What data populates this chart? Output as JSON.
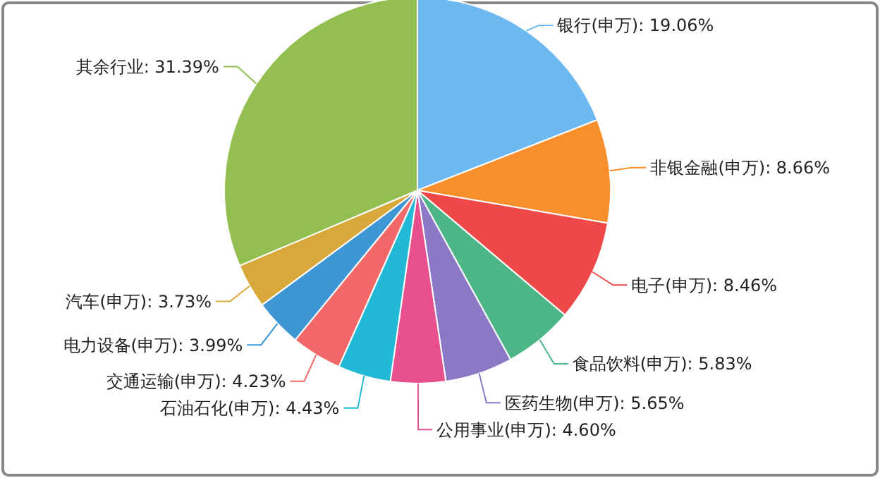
{
  "chart_data": {
    "type": "pie",
    "categories": [
      "银行(申万)",
      "非银金融(申万)",
      "电子(申万)",
      "食品饮料(申万)",
      "医药生物(申万)",
      "公用事业(申万)",
      "石油石化(申万)",
      "交通运输(申万)",
      "电力设备(申万)",
      "汽车(申万)",
      "其余行业"
    ],
    "values": [
      19.06,
      8.66,
      8.46,
      5.83,
      5.65,
      4.6,
      4.43,
      4.23,
      3.99,
      3.73,
      31.39
    ],
    "value_labels": [
      "19.06%",
      "8.66%",
      "8.46%",
      "5.83%",
      "5.65%",
      "4.60%",
      "4.43%",
      "4.23%",
      "3.99%",
      "3.73%",
      "31.39%"
    ],
    "colors": [
      "#6cb9f1",
      "#f98e2c",
      "#ee4849",
      "#4cb687",
      "#8b79c7",
      "#e8508d",
      "#22b9d6",
      "#f26868",
      "#3f96d5",
      "#d8a83a",
      "#93bf51"
    ]
  }
}
